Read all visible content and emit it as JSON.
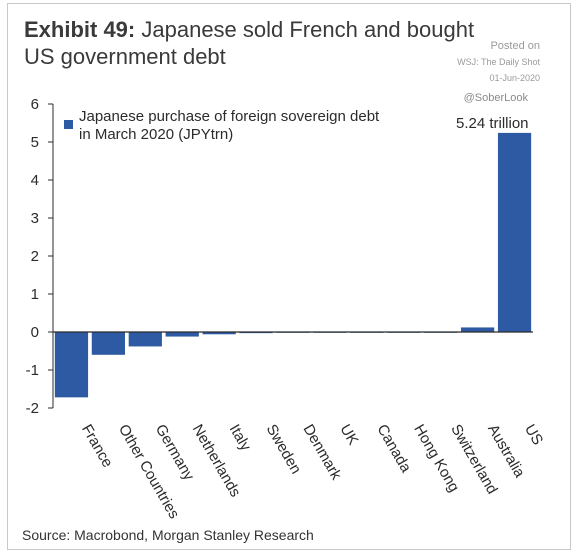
{
  "header": {
    "exhibit": "Exhibit 49:",
    "title": "Japanese sold French and bought US government debt"
  },
  "watermark": {
    "posted_on": "Posted on",
    "outlet": "WSJ: The Daily Shot",
    "date": "01-Jun-2020",
    "handle": "@SoberLook"
  },
  "footer": {
    "source": "Source: Macrobond, Morgan Stanley Research"
  },
  "colors": {
    "bar": "#2e5aa3",
    "axis": "#2b2b2b",
    "grid": "#ffffff"
  },
  "chart_data": {
    "type": "bar",
    "title": "",
    "xlabel": "",
    "ylabel": "",
    "ylim": [
      -2,
      6
    ],
    "yticks": [
      -2,
      -1,
      0,
      1,
      2,
      3,
      4,
      5,
      6
    ],
    "grid": false,
    "legend_position": "top-left",
    "categories": [
      "France",
      "Other Countries",
      "Germany",
      "Netherlands",
      "Italy",
      "Sweden",
      "Denmark",
      "UK",
      "Canada",
      "Hong Kong",
      "Switzerland",
      "Australia",
      "US"
    ],
    "series": [
      {
        "name": "Japanese purchase of foreign sovereign debt in March 2020 (JPYtrn)",
        "values": [
          -1.72,
          -0.6,
          -0.38,
          -0.12,
          -0.06,
          -0.03,
          -0.02,
          -0.01,
          -0.005,
          -0.005,
          -0.01,
          0.12,
          5.24
        ]
      }
    ],
    "annotations": [
      {
        "category": "US",
        "text": "5.24 trillion"
      }
    ]
  }
}
